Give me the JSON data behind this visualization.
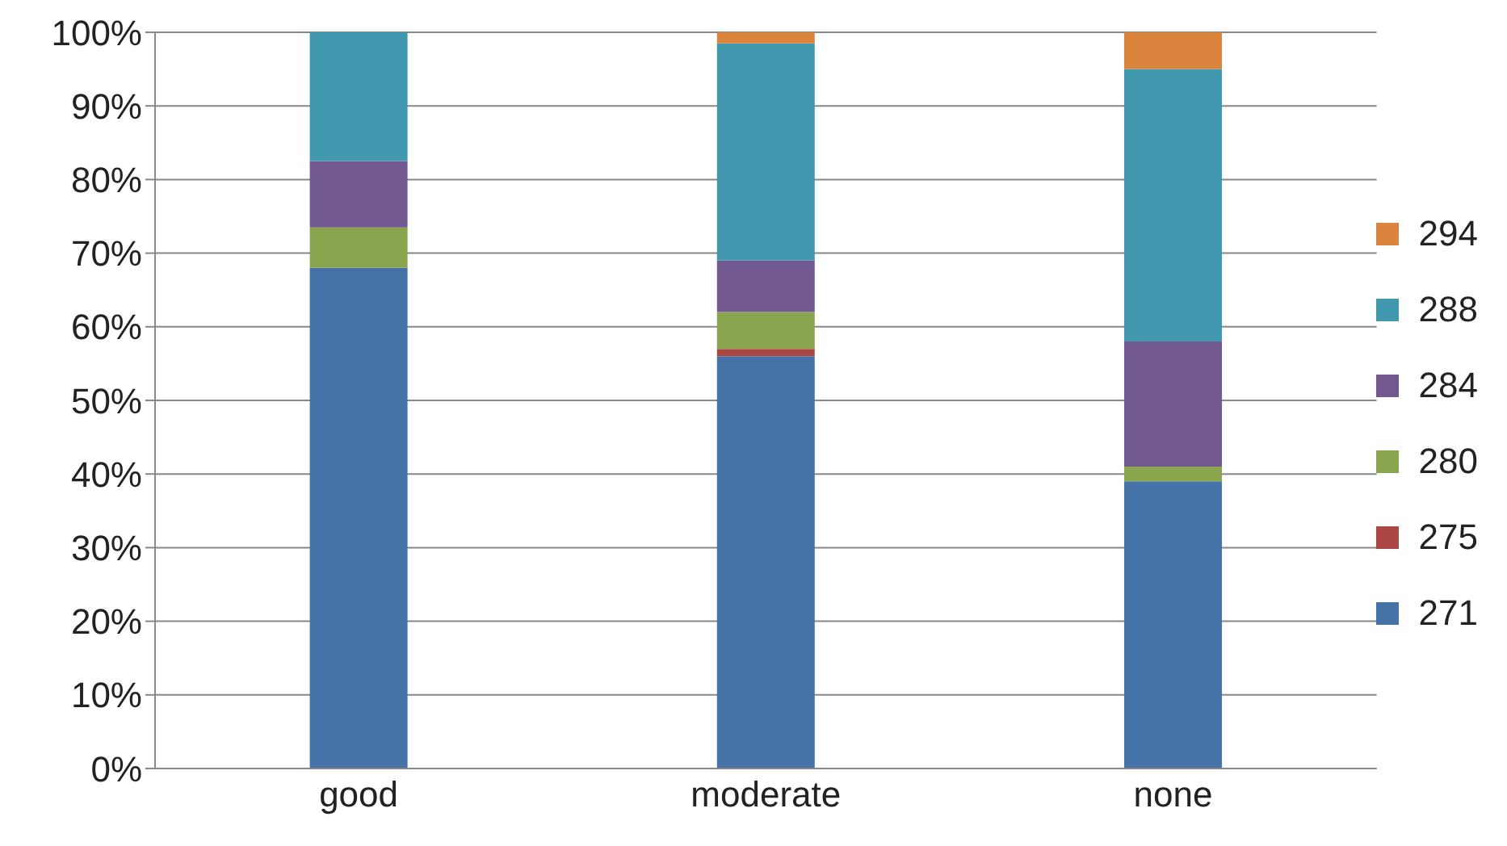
{
  "chart_data": {
    "type": "bar",
    "stacked": true,
    "categories": [
      "good",
      "moderate",
      "none"
    ],
    "series": [
      {
        "name": "271",
        "color": "#4573a7",
        "values": [
          68,
          56,
          39
        ]
      },
      {
        "name": "275",
        "color": "#aa4643",
        "values": [
          0,
          1,
          0
        ]
      },
      {
        "name": "280",
        "color": "#89a54e",
        "values": [
          5.5,
          5,
          2
        ]
      },
      {
        "name": "284",
        "color": "#71588f",
        "values": [
          9,
          7,
          17
        ]
      },
      {
        "name": "288",
        "color": "#4198af",
        "values": [
          17.5,
          29.5,
          37
        ]
      },
      {
        "name": "294",
        "color": "#db843d",
        "values": [
          0,
          1.5,
          5
        ]
      }
    ],
    "ylim": [
      0,
      100
    ],
    "yticks": [
      {
        "value": 0,
        "label": "0%"
      },
      {
        "value": 10,
        "label": "10%"
      },
      {
        "value": 20,
        "label": "20%"
      },
      {
        "value": 30,
        "label": "30%"
      },
      {
        "value": 40,
        "label": "40%"
      },
      {
        "value": 50,
        "label": "50%"
      },
      {
        "value": 60,
        "label": "60%"
      },
      {
        "value": 70,
        "label": "70%"
      },
      {
        "value": 80,
        "label": "80%"
      },
      {
        "value": 90,
        "label": "90%"
      },
      {
        "value": 100,
        "label": "100%"
      }
    ],
    "grid": "y",
    "legend": "right"
  }
}
